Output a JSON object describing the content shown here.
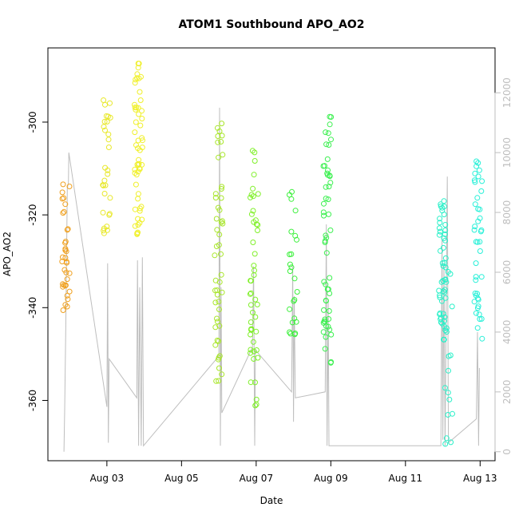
{
  "chart_data": {
    "type": "scatter",
    "title": "ATOM1 Southbound APO_AO2",
    "xlabel": "Date",
    "ylabel": "APO_AO2",
    "x_ticks": [
      "Aug 03",
      "Aug 05",
      "Aug 07",
      "Aug 09",
      "Aug 11",
      "Aug 13"
    ],
    "x_tick_days": [
      3,
      5,
      7,
      9,
      11,
      13
    ],
    "xlim_days": [
      1.42,
      13.4
    ],
    "y_ticks": [
      -300,
      -320,
      -340,
      -360
    ],
    "ylim": [
      -373,
      -284
    ],
    "y2_ticks": [
      0,
      2000,
      4000,
      6000,
      8000,
      10000,
      12000
    ],
    "y2lim": [
      -300,
      13500
    ],
    "point_marker": "open-circle",
    "line_color": "#bebebe",
    "clusters": [
      {
        "day": 1.9,
        "color": "#f0a01e",
        "n": 36,
        "ymin": -342,
        "ymax": -313
      },
      {
        "day": 3.0,
        "color": "#e8e82a",
        "n": 30,
        "ymin": -324,
        "ymax": -295
      },
      {
        "day": 3.85,
        "color": "#f0f02a",
        "n": 55,
        "ymin": -325,
        "ymax": -287
      },
      {
        "day": 6.0,
        "color": "#a8e62a",
        "n": 50,
        "ymin": -356,
        "ymax": -300
      },
      {
        "day": 6.95,
        "color": "#80f02a",
        "n": 48,
        "ymin": -365,
        "ymax": -303
      },
      {
        "day": 8.0,
        "color": "#3cf03c",
        "n": 24,
        "ymin": -346,
        "ymax": -315
      },
      {
        "day": 8.9,
        "color": "#3cf050",
        "n": 55,
        "ymin": -352,
        "ymax": -298
      },
      {
        "day": 12.0,
        "color": "#28f0c8",
        "n": 50,
        "ymin": -347,
        "ymax": -316
      },
      {
        "day": 12.15,
        "color": "#28f0c8",
        "n": 16,
        "ymin": -370,
        "ymax": -330
      },
      {
        "day": 12.95,
        "color": "#28f0d8",
        "n": 42,
        "ymin": -347,
        "ymax": -308
      }
    ],
    "line_series": {
      "name": "",
      "axis": "right",
      "points": [
        [
          1.85,
          0
        ],
        [
          1.87,
          1400
        ],
        [
          1.9,
          4200
        ],
        [
          1.94,
          8800
        ],
        [
          1.97,
          9000
        ],
        [
          1.98,
          10000
        ],
        [
          3.0,
          1500
        ],
        [
          3.02,
          6300
        ],
        [
          3.04,
          300
        ],
        [
          3.06,
          3100
        ],
        [
          3.8,
          1800
        ],
        [
          3.82,
          6400
        ],
        [
          3.85,
          200
        ],
        [
          3.88,
          5500
        ],
        [
          3.92,
          200
        ],
        [
          3.95,
          6500
        ],
        [
          3.98,
          200
        ],
        [
          6.0,
          3200
        ],
        [
          6.02,
          11500
        ],
        [
          6.04,
          200
        ],
        [
          6.06,
          5500
        ],
        [
          6.08,
          1300
        ],
        [
          6.9,
          3500
        ],
        [
          6.93,
          6200
        ],
        [
          6.96,
          200
        ],
        [
          6.98,
          3400
        ],
        [
          7.95,
          2000
        ],
        [
          7.98,
          6200
        ],
        [
          8.0,
          1000
        ],
        [
          8.02,
          5200
        ],
        [
          8.05,
          1800
        ],
        [
          8.85,
          2000
        ],
        [
          8.88,
          7600
        ],
        [
          8.9,
          200
        ],
        [
          8.93,
          5000
        ],
        [
          8.95,
          200
        ],
        [
          11.95,
          200
        ],
        [
          11.98,
          7200
        ],
        [
          12.0,
          400
        ],
        [
          12.03,
          6300
        ],
        [
          12.06,
          200
        ],
        [
          12.12,
          9200
        ],
        [
          12.15,
          300
        ],
        [
          12.9,
          1100
        ],
        [
          12.93,
          4000
        ],
        [
          12.96,
          200
        ],
        [
          12.98,
          2800
        ]
      ]
    },
    "grid": false
  }
}
